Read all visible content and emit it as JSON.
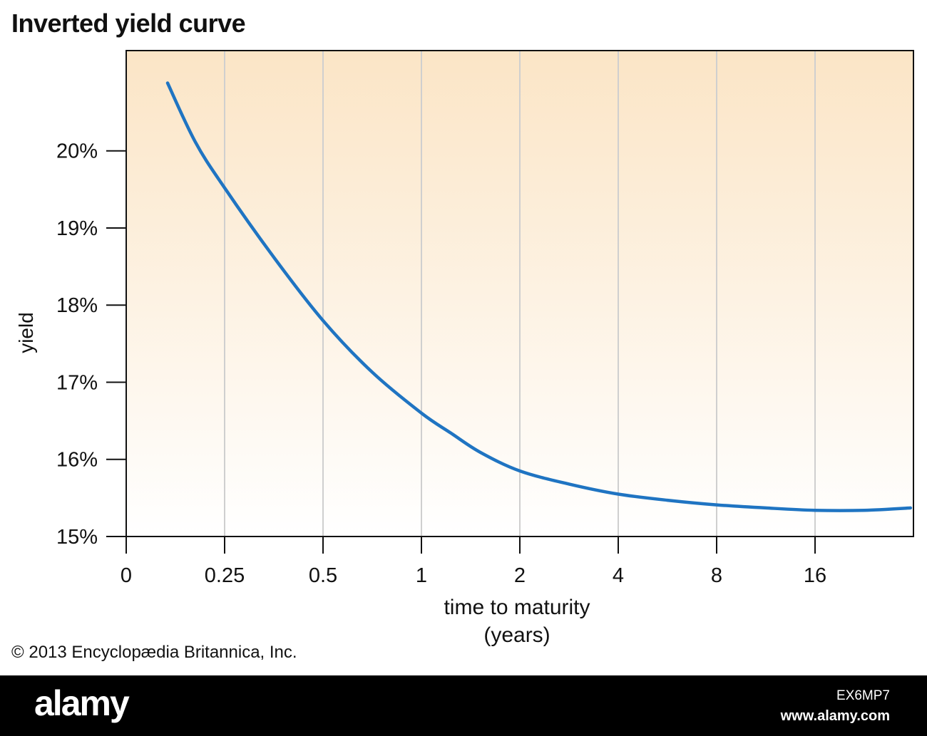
{
  "title": "Inverted yield curve",
  "copyright": "© 2013 Encyclopædia Britannica, Inc.",
  "footer": {
    "logo": "alamy",
    "image_id": "EX6MP7",
    "site": "www.alamy.com"
  },
  "colors": {
    "line": "#1f74c2",
    "background_top": "#fbe5c6",
    "background_bottom": "#ffffff",
    "grid": "#cfcfcf",
    "axis": "#111111"
  },
  "chart_data": {
    "type": "line",
    "title": "Inverted yield curve",
    "xlabel": "time to maturity (years)",
    "xlabel_lines": [
      "time to maturity",
      "(years)"
    ],
    "ylabel": "yield",
    "x_scale": "categorical-log (0, 0.25, 0.5, 1, 2, 4, 8, 16)",
    "x_ticks": [
      "0",
      "0.25",
      "0.5",
      "1",
      "2",
      "4",
      "8",
      "16"
    ],
    "y_ticks": [
      "15%",
      "16%",
      "17%",
      "18%",
      "19%",
      "20%"
    ],
    "ylim": [
      15,
      21.3
    ],
    "grid": "vertical lines at each x tick",
    "series": [
      {
        "points": [
          {
            "tick": 0.42,
            "yield": 20.88
          },
          {
            "tick": 0.7,
            "yield": 20.12
          },
          {
            "tick": 1.0,
            "yield": 19.52
          },
          {
            "tick": 1.5,
            "yield": 18.62
          },
          {
            "tick": 2.0,
            "yield": 17.8
          },
          {
            "tick": 2.5,
            "yield": 17.13
          },
          {
            "tick": 3.0,
            "yield": 16.6
          },
          {
            "tick": 3.3,
            "yield": 16.34
          },
          {
            "tick": 3.6,
            "yield": 16.09
          },
          {
            "tick": 4.0,
            "yield": 15.85
          },
          {
            "tick": 4.5,
            "yield": 15.68
          },
          {
            "tick": 5.0,
            "yield": 15.55
          },
          {
            "tick": 5.5,
            "yield": 15.47
          },
          {
            "tick": 6.0,
            "yield": 15.41
          },
          {
            "tick": 6.5,
            "yield": 15.37
          },
          {
            "tick": 7.0,
            "yield": 15.34
          },
          {
            "tick": 7.5,
            "yield": 15.34
          },
          {
            "tick": 7.97,
            "yield": 15.37
          }
        ]
      }
    ]
  }
}
